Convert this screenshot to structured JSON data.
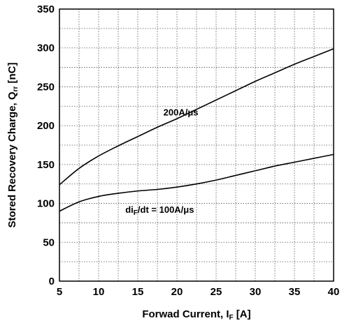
{
  "chart_data": {
    "type": "line",
    "x_axis": {
      "label_main": "Forwad Current, I",
      "label_sub": "F",
      "label_unit": " [A]",
      "range": [
        5,
        40
      ],
      "ticks": [
        5,
        10,
        15,
        20,
        25,
        30,
        35,
        40
      ]
    },
    "y_axis": {
      "label_main": "Stored Recovery Charge, Q",
      "label_sub": "rr",
      "label_unit": " [nC]",
      "range": [
        0,
        350
      ],
      "ticks": [
        0,
        50,
        100,
        150,
        200,
        250,
        300,
        350
      ]
    },
    "grid": "dotted, x every 2.5 A, y every 25 nC",
    "series": [
      {
        "name": "200A/μs",
        "x": [
          5,
          7.5,
          10,
          12.5,
          15,
          17.5,
          20,
          22.5,
          25,
          27.5,
          30,
          32.5,
          35,
          37.5,
          40
        ],
        "y": [
          124,
          145,
          161,
          174,
          186,
          198,
          209,
          221,
          233,
          245,
          257,
          268,
          279,
          289,
          299
        ]
      },
      {
        "name": "100A/μs",
        "x": [
          5,
          7.5,
          10,
          12.5,
          15,
          17.5,
          20,
          22.5,
          25,
          27.5,
          30,
          32.5,
          35,
          37.5,
          40
        ],
        "y": [
          90,
          102,
          109,
          113,
          116,
          118,
          121,
          125,
          130,
          136,
          142,
          148,
          153,
          158,
          163
        ]
      }
    ],
    "annotations": [
      {
        "main": "200A/μs",
        "sub": "",
        "rest": "",
        "x": 20.5,
        "y": 213
      },
      {
        "main": "di",
        "sub": "F",
        "rest": "/dt = 100A/μs",
        "x": 17.8,
        "y": 88
      }
    ]
  }
}
